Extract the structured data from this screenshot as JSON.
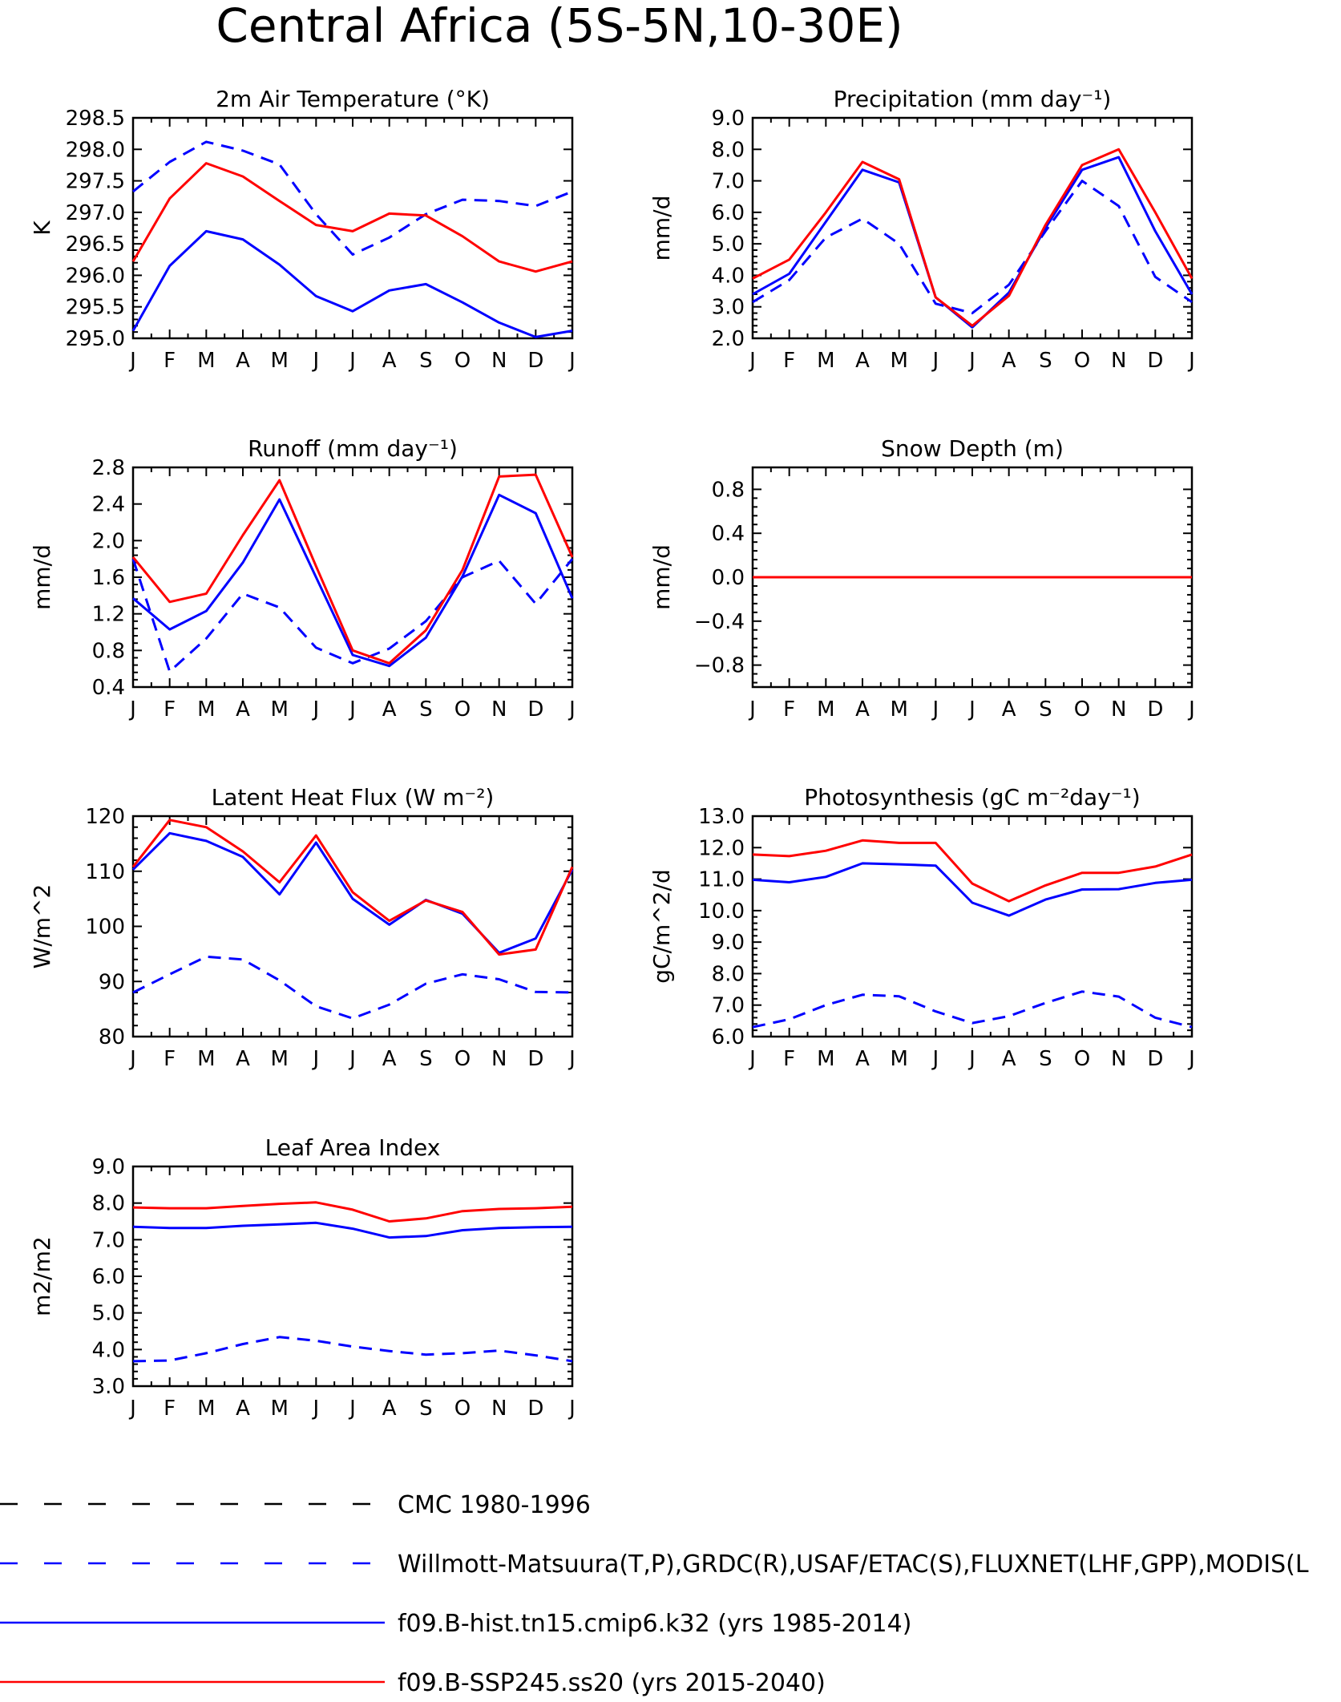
{
  "figure": {
    "title": "Central Africa (5S-5N,10-30E)"
  },
  "colors": {
    "cmc": "#000000",
    "obs": "#0000ff",
    "hist": "#0000ff",
    "ssp": "#ff0000"
  },
  "legend": [
    {
      "label": "CMC 1980-1996",
      "color": "#000000",
      "dash": "long"
    },
    {
      "label": "Willmott-Matsuura(T,P),GRDC(R),USAF/ETAC(S),FLUXNET(LHF,GPP),MODIS(L",
      "color": "#0000ff",
      "dash": "long"
    },
    {
      "label": "f09.B-hist.tn15.cmip6.k32 (yrs 1985-2014)",
      "color": "#0000ff",
      "dash": "solid"
    },
    {
      "label": "f09.B-SSP245.ss20 (yrs 2015-2040)",
      "color": "#ff0000",
      "dash": "solid"
    }
  ],
  "chart_data": [
    {
      "type": "line",
      "title": "2m Air Temperature (°K)",
      "ylabel": "K",
      "categories": [
        "J",
        "F",
        "M",
        "A",
        "M",
        "J",
        "J",
        "A",
        "S",
        "O",
        "N",
        "D",
        "J"
      ],
      "ylim": [
        295.0,
        298.5
      ],
      "yticks": [
        "295.0",
        "295.5",
        "296.0",
        "296.5",
        "297.0",
        "297.5",
        "298.0",
        "298.5"
      ],
      "series": [
        {
          "name": "f09.B-SSP245.ss20 (yrs 2015-2040)",
          "style": "solid",
          "color": "#ff0000",
          "values": [
            296.22,
            297.22,
            297.78,
            297.57,
            297.18,
            296.8,
            296.7,
            296.98,
            296.95,
            296.62,
            296.22,
            296.06,
            296.22
          ]
        },
        {
          "name": "f09.B-hist.tn15.cmip6.k32 (yrs 1985-2014)",
          "style": "solid",
          "color": "#0000ff",
          "values": [
            295.12,
            296.15,
            296.7,
            296.57,
            296.17,
            295.67,
            295.43,
            295.76,
            295.86,
            295.57,
            295.25,
            295.02,
            295.12
          ]
        },
        {
          "name": "Willmott-Matsuura(T,P),GRDC(R),USAF/ETAC(S),FLUXNET(LHF,GPP),MODIS(L",
          "style": "dashed",
          "color": "#0000ff",
          "values": [
            297.33,
            297.8,
            298.12,
            297.98,
            297.76,
            296.97,
            296.33,
            296.6,
            296.97,
            297.2,
            297.18,
            297.1,
            297.33
          ]
        }
      ]
    },
    {
      "type": "line",
      "title": "Precipitation (mm day⁻¹)",
      "ylabel": "mm/d",
      "categories": [
        "J",
        "F",
        "M",
        "A",
        "M",
        "J",
        "J",
        "A",
        "S",
        "O",
        "N",
        "D",
        "J"
      ],
      "ylim": [
        2.0,
        9.0
      ],
      "yticks": [
        "2.0",
        "3.0",
        "4.0",
        "5.0",
        "6.0",
        "7.0",
        "8.0",
        "9.0"
      ],
      "series": [
        {
          "name": "f09.B-SSP245.ss20 (yrs 2015-2040)",
          "style": "solid",
          "color": "#ff0000",
          "values": [
            3.9,
            4.5,
            6.0,
            7.6,
            7.05,
            3.3,
            2.4,
            3.35,
            5.6,
            7.5,
            8.0,
            6.0,
            3.9
          ]
        },
        {
          "name": "f09.B-hist.tn15.cmip6.k32 (yrs 1985-2014)",
          "style": "solid",
          "color": "#0000ff",
          "values": [
            3.4,
            4.05,
            5.7,
            7.35,
            6.95,
            3.3,
            2.35,
            3.45,
            5.5,
            7.35,
            7.75,
            5.4,
            3.4
          ]
        },
        {
          "name": "Willmott-Matsuura(T,P),GRDC(R),USAF/ETAC(S),FLUXNET(LHF,GPP),MODIS(L",
          "style": "dashed",
          "color": "#0000ff",
          "values": [
            3.15,
            3.85,
            5.2,
            5.8,
            5.0,
            3.1,
            2.8,
            3.7,
            5.4,
            7.0,
            6.2,
            3.95,
            3.15
          ]
        }
      ]
    },
    {
      "type": "line",
      "title": "Runoff (mm day⁻¹)",
      "ylabel": "mm/d",
      "categories": [
        "J",
        "F",
        "M",
        "A",
        "M",
        "J",
        "J",
        "A",
        "S",
        "O",
        "N",
        "D",
        "J"
      ],
      "ylim": [
        0.4,
        2.8
      ],
      "yticks": [
        "0.4",
        "0.8",
        "1.2",
        "1.6",
        "2.0",
        "2.4",
        "2.8"
      ],
      "series": [
        {
          "name": "f09.B-SSP245.ss20 (yrs 2015-2040)",
          "style": "solid",
          "color": "#ff0000",
          "values": [
            1.82,
            1.33,
            1.42,
            2.06,
            2.66,
            1.72,
            0.8,
            0.66,
            1.02,
            1.68,
            2.7,
            2.72,
            1.82
          ]
        },
        {
          "name": "f09.B-hist.tn15.cmip6.k32 (yrs 1985-2014)",
          "style": "solid",
          "color": "#0000ff",
          "values": [
            1.37,
            1.03,
            1.23,
            1.76,
            2.45,
            1.6,
            0.75,
            0.63,
            0.94,
            1.61,
            2.5,
            2.3,
            1.37
          ]
        },
        {
          "name": "Willmott-Matsuura(T,P),GRDC(R),USAF/ETAC(S),FLUXNET(LHF,GPP),MODIS(L",
          "style": "dashed",
          "color": "#0000ff",
          "values": [
            1.8,
            0.57,
            0.93,
            1.42,
            1.27,
            0.83,
            0.66,
            0.82,
            1.12,
            1.6,
            1.78,
            1.31,
            1.8
          ]
        }
      ]
    },
    {
      "type": "line",
      "title": "Snow Depth (m)",
      "ylabel": "mm/d",
      "categories": [
        "J",
        "F",
        "M",
        "A",
        "M",
        "J",
        "J",
        "A",
        "S",
        "O",
        "N",
        "D",
        "J"
      ],
      "ylim": [
        -1.0,
        1.0
      ],
      "yticks": [
        "-0.8",
        "-0.4",
        "0.0",
        "0.4",
        "0.8"
      ],
      "series": [
        {
          "name": "f09.B-SSP245.ss20 (yrs 2015-2040)",
          "style": "solid",
          "color": "#ff0000",
          "values": [
            0,
            0,
            0,
            0,
            0,
            0,
            0,
            0,
            0,
            0,
            0,
            0,
            0
          ]
        },
        {
          "name": "f09.B-hist.tn15.cmip6.k32 (yrs 1985-2014)",
          "style": "solid",
          "color": "#0000ff",
          "values": [
            0,
            0,
            0,
            0,
            0,
            0,
            0,
            0,
            0,
            0,
            0,
            0,
            0
          ]
        },
        {
          "name": "Willmott-Matsuura(T,P),GRDC(R),USAF/ETAC(S),FLUXNET(LHF,GPP),MODIS(L",
          "style": "dashed",
          "color": "#0000ff",
          "values": [
            0,
            0,
            0,
            0,
            0,
            0,
            0,
            0,
            0,
            0,
            0,
            0,
            0
          ]
        }
      ]
    },
    {
      "type": "line",
      "title": "Latent Heat Flux (W m⁻²)",
      "ylabel": "W/m^2",
      "categories": [
        "J",
        "F",
        "M",
        "A",
        "M",
        "J",
        "J",
        "A",
        "S",
        "O",
        "N",
        "D",
        "J"
      ],
      "ylim": [
        80,
        120
      ],
      "yticks": [
        "80",
        "90",
        "100",
        "110",
        "120"
      ],
      "series": [
        {
          "name": "f09.B-SSP245.ss20 (yrs 2015-2040)",
          "style": "solid",
          "color": "#ff0000",
          "values": [
            110.8,
            119.3,
            118.0,
            113.6,
            108.0,
            116.5,
            106.2,
            101.0,
            104.7,
            102.6,
            94.9,
            95.8,
            110.8
          ]
        },
        {
          "name": "f09.B-hist.tn15.cmip6.k32 (yrs 1985-2014)",
          "style": "solid",
          "color": "#0000ff",
          "values": [
            110.3,
            116.9,
            115.5,
            112.6,
            105.8,
            115.2,
            105.0,
            100.3,
            104.8,
            102.3,
            95.2,
            97.8,
            110.3
          ]
        },
        {
          "name": "Willmott-Matsuura(T,P),GRDC(R),USAF/ETAC(S),FLUXNET(LHF,GPP),MODIS(L",
          "style": "dashed",
          "color": "#0000ff",
          "values": [
            88.0,
            91.3,
            94.5,
            94.0,
            90.2,
            85.5,
            83.3,
            85.8,
            89.6,
            91.3,
            90.4,
            88.1,
            88.0
          ]
        }
      ]
    },
    {
      "type": "line",
      "title": "Photosynthesis (gC m⁻²day⁻¹)",
      "ylabel": "gC/m^2/d",
      "categories": [
        "J",
        "F",
        "M",
        "A",
        "M",
        "J",
        "J",
        "A",
        "S",
        "O",
        "N",
        "D",
        "J"
      ],
      "ylim": [
        6.0,
        13.0
      ],
      "yticks": [
        "6.0",
        "7.0",
        "8.0",
        "9.0",
        "10.0",
        "11.0",
        "12.0",
        "13.0"
      ],
      "series": [
        {
          "name": "f09.B-SSP245.ss20 (yrs 2015-2040)",
          "style": "solid",
          "color": "#ff0000",
          "values": [
            11.78,
            11.73,
            11.9,
            12.23,
            12.15,
            12.15,
            10.86,
            10.3,
            10.8,
            11.2,
            11.2,
            11.4,
            11.78
          ]
        },
        {
          "name": "f09.B-hist.tn15.cmip6.k32 (yrs 1985-2014)",
          "style": "solid",
          "color": "#0000ff",
          "values": [
            10.98,
            10.9,
            11.07,
            11.5,
            11.47,
            11.43,
            10.25,
            9.84,
            10.35,
            10.67,
            10.68,
            10.88,
            10.98
          ]
        },
        {
          "name": "Willmott-Matsuura(T,P),GRDC(R),USAF/ETAC(S),FLUXNET(LHF,GPP),MODIS(L",
          "style": "dashed",
          "color": "#0000ff",
          "values": [
            6.3,
            6.55,
            7.0,
            7.33,
            7.28,
            6.8,
            6.43,
            6.65,
            7.07,
            7.43,
            7.27,
            6.6,
            6.3
          ]
        }
      ]
    },
    {
      "type": "line",
      "title": "Leaf Area Index",
      "ylabel": "m2/m2",
      "categories": [
        "J",
        "F",
        "M",
        "A",
        "M",
        "J",
        "J",
        "A",
        "S",
        "O",
        "N",
        "D",
        "J"
      ],
      "ylim": [
        3.0,
        9.0
      ],
      "yticks": [
        "3.0",
        "4.0",
        "5.0",
        "6.0",
        "7.0",
        "8.0",
        "9.0"
      ],
      "series": [
        {
          "name": "f09.B-SSP245.ss20 (yrs 2015-2040)",
          "style": "solid",
          "color": "#ff0000",
          "values": [
            7.88,
            7.86,
            7.86,
            7.92,
            7.98,
            8.02,
            7.82,
            7.5,
            7.58,
            7.78,
            7.84,
            7.86,
            7.9
          ]
        },
        {
          "name": "f09.B-hist.tn15.cmip6.k32 (yrs 1985-2014)",
          "style": "solid",
          "color": "#0000ff",
          "values": [
            7.35,
            7.32,
            7.32,
            7.38,
            7.42,
            7.46,
            7.3,
            7.06,
            7.1,
            7.26,
            7.32,
            7.34,
            7.35
          ]
        },
        {
          "name": "Willmott-Matsuura(T,P),GRDC(R),USAF/ETAC(S),FLUXNET(LHF,GPP),MODIS(L",
          "style": "dashed",
          "color": "#0000ff",
          "values": [
            3.68,
            3.7,
            3.9,
            4.15,
            4.34,
            4.24,
            4.08,
            3.96,
            3.86,
            3.9,
            3.97,
            3.84,
            3.68
          ]
        }
      ]
    }
  ]
}
